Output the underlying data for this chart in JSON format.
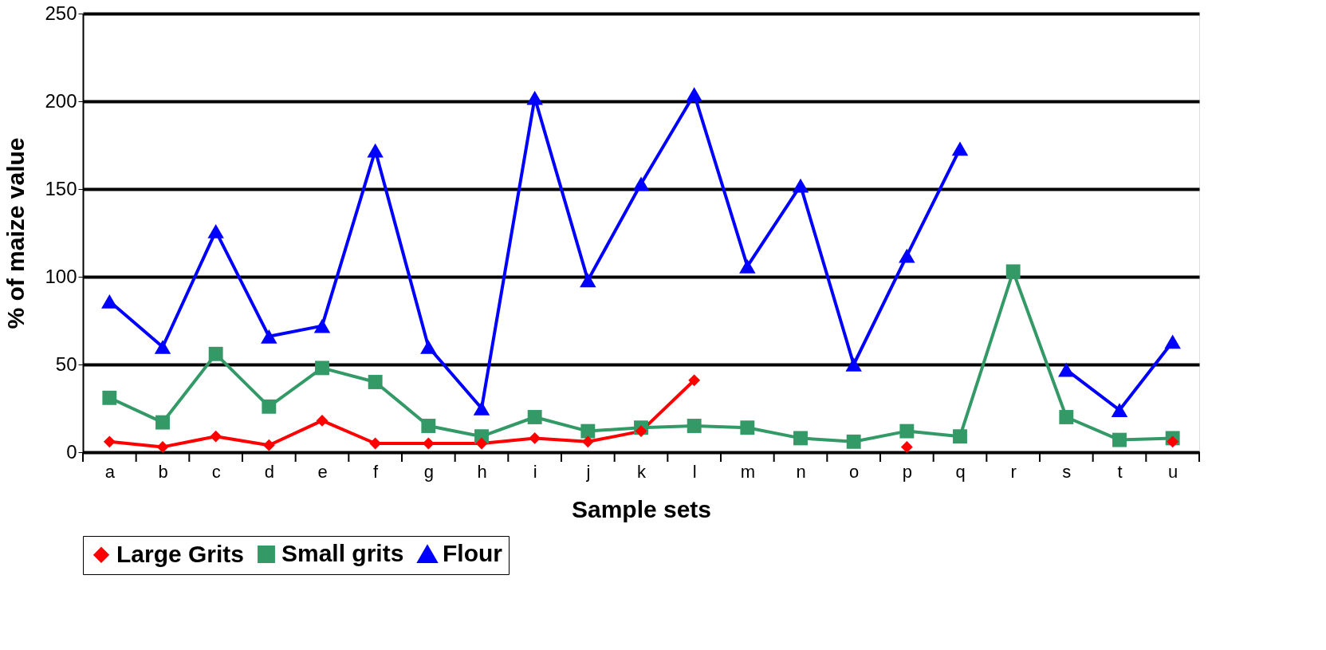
{
  "chart_data": {
    "type": "line",
    "xlabel": "Sample sets",
    "ylabel": "% of maize value",
    "categories": [
      "a",
      "b",
      "c",
      "d",
      "e",
      "f",
      "g",
      "h",
      "i",
      "j",
      "k",
      "l",
      "m",
      "n",
      "o",
      "p",
      "q",
      "r",
      "s",
      "t",
      "u"
    ],
    "series": [
      {
        "name": "Large Grits",
        "color": "#ff0000",
        "marker": "diamond",
        "values": [
          6,
          3,
          9,
          4,
          18,
          5,
          5,
          5,
          8,
          6,
          12,
          41,
          null,
          null,
          null,
          3,
          null,
          null,
          null,
          null,
          6
        ]
      },
      {
        "name": "Small grits",
        "color": "#339966",
        "marker": "square",
        "values": [
          31,
          17,
          56,
          26,
          48,
          40,
          15,
          9,
          20,
          12,
          14,
          15,
          14,
          8,
          6,
          12,
          9,
          103,
          20,
          7,
          8
        ]
      },
      {
        "name": "Flour",
        "color": "#0000ff",
        "marker": "triangle",
        "values": [
          86,
          60,
          126,
          66,
          72,
          172,
          60,
          25,
          202,
          98,
          153,
          204,
          106,
          152,
          50,
          112,
          173,
          null,
          47,
          24,
          63
        ]
      }
    ],
    "ylim": [
      0,
      250
    ],
    "yticks": [
      0,
      50,
      100,
      150,
      200,
      250
    ],
    "grid": "y",
    "legend": "bottom",
    "line_style": "solid"
  }
}
